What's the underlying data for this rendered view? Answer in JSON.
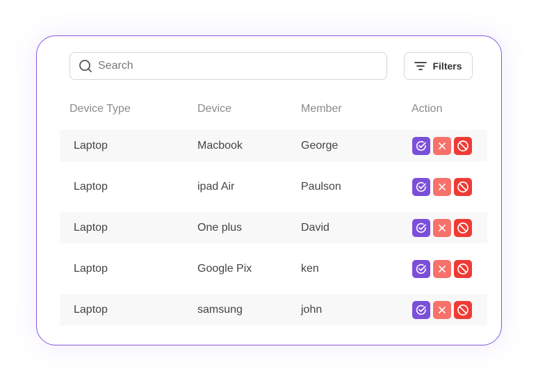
{
  "search": {
    "placeholder": "Search",
    "icon": "search-icon"
  },
  "filters": {
    "label": "Filters",
    "icon": "filter-icon"
  },
  "columns": [
    "Device Type",
    "Device",
    "Member",
    "Action"
  ],
  "rows": [
    {
      "type": "Laptop",
      "device": "Macbook",
      "member": "George"
    },
    {
      "type": "Laptop",
      "device": "ipad Air",
      "member": "Paulson"
    },
    {
      "type": "Laptop",
      "device": "One plus",
      "member": "David"
    },
    {
      "type": "Laptop",
      "device": "Google Pix",
      "member": "ken"
    },
    {
      "type": "Laptop",
      "device": "samsung",
      "member": "john"
    }
  ],
  "colors": {
    "accent": "#8358e0",
    "approve": "#7c4fd9",
    "reject": "#f7716a",
    "block": "#ef3b35"
  }
}
